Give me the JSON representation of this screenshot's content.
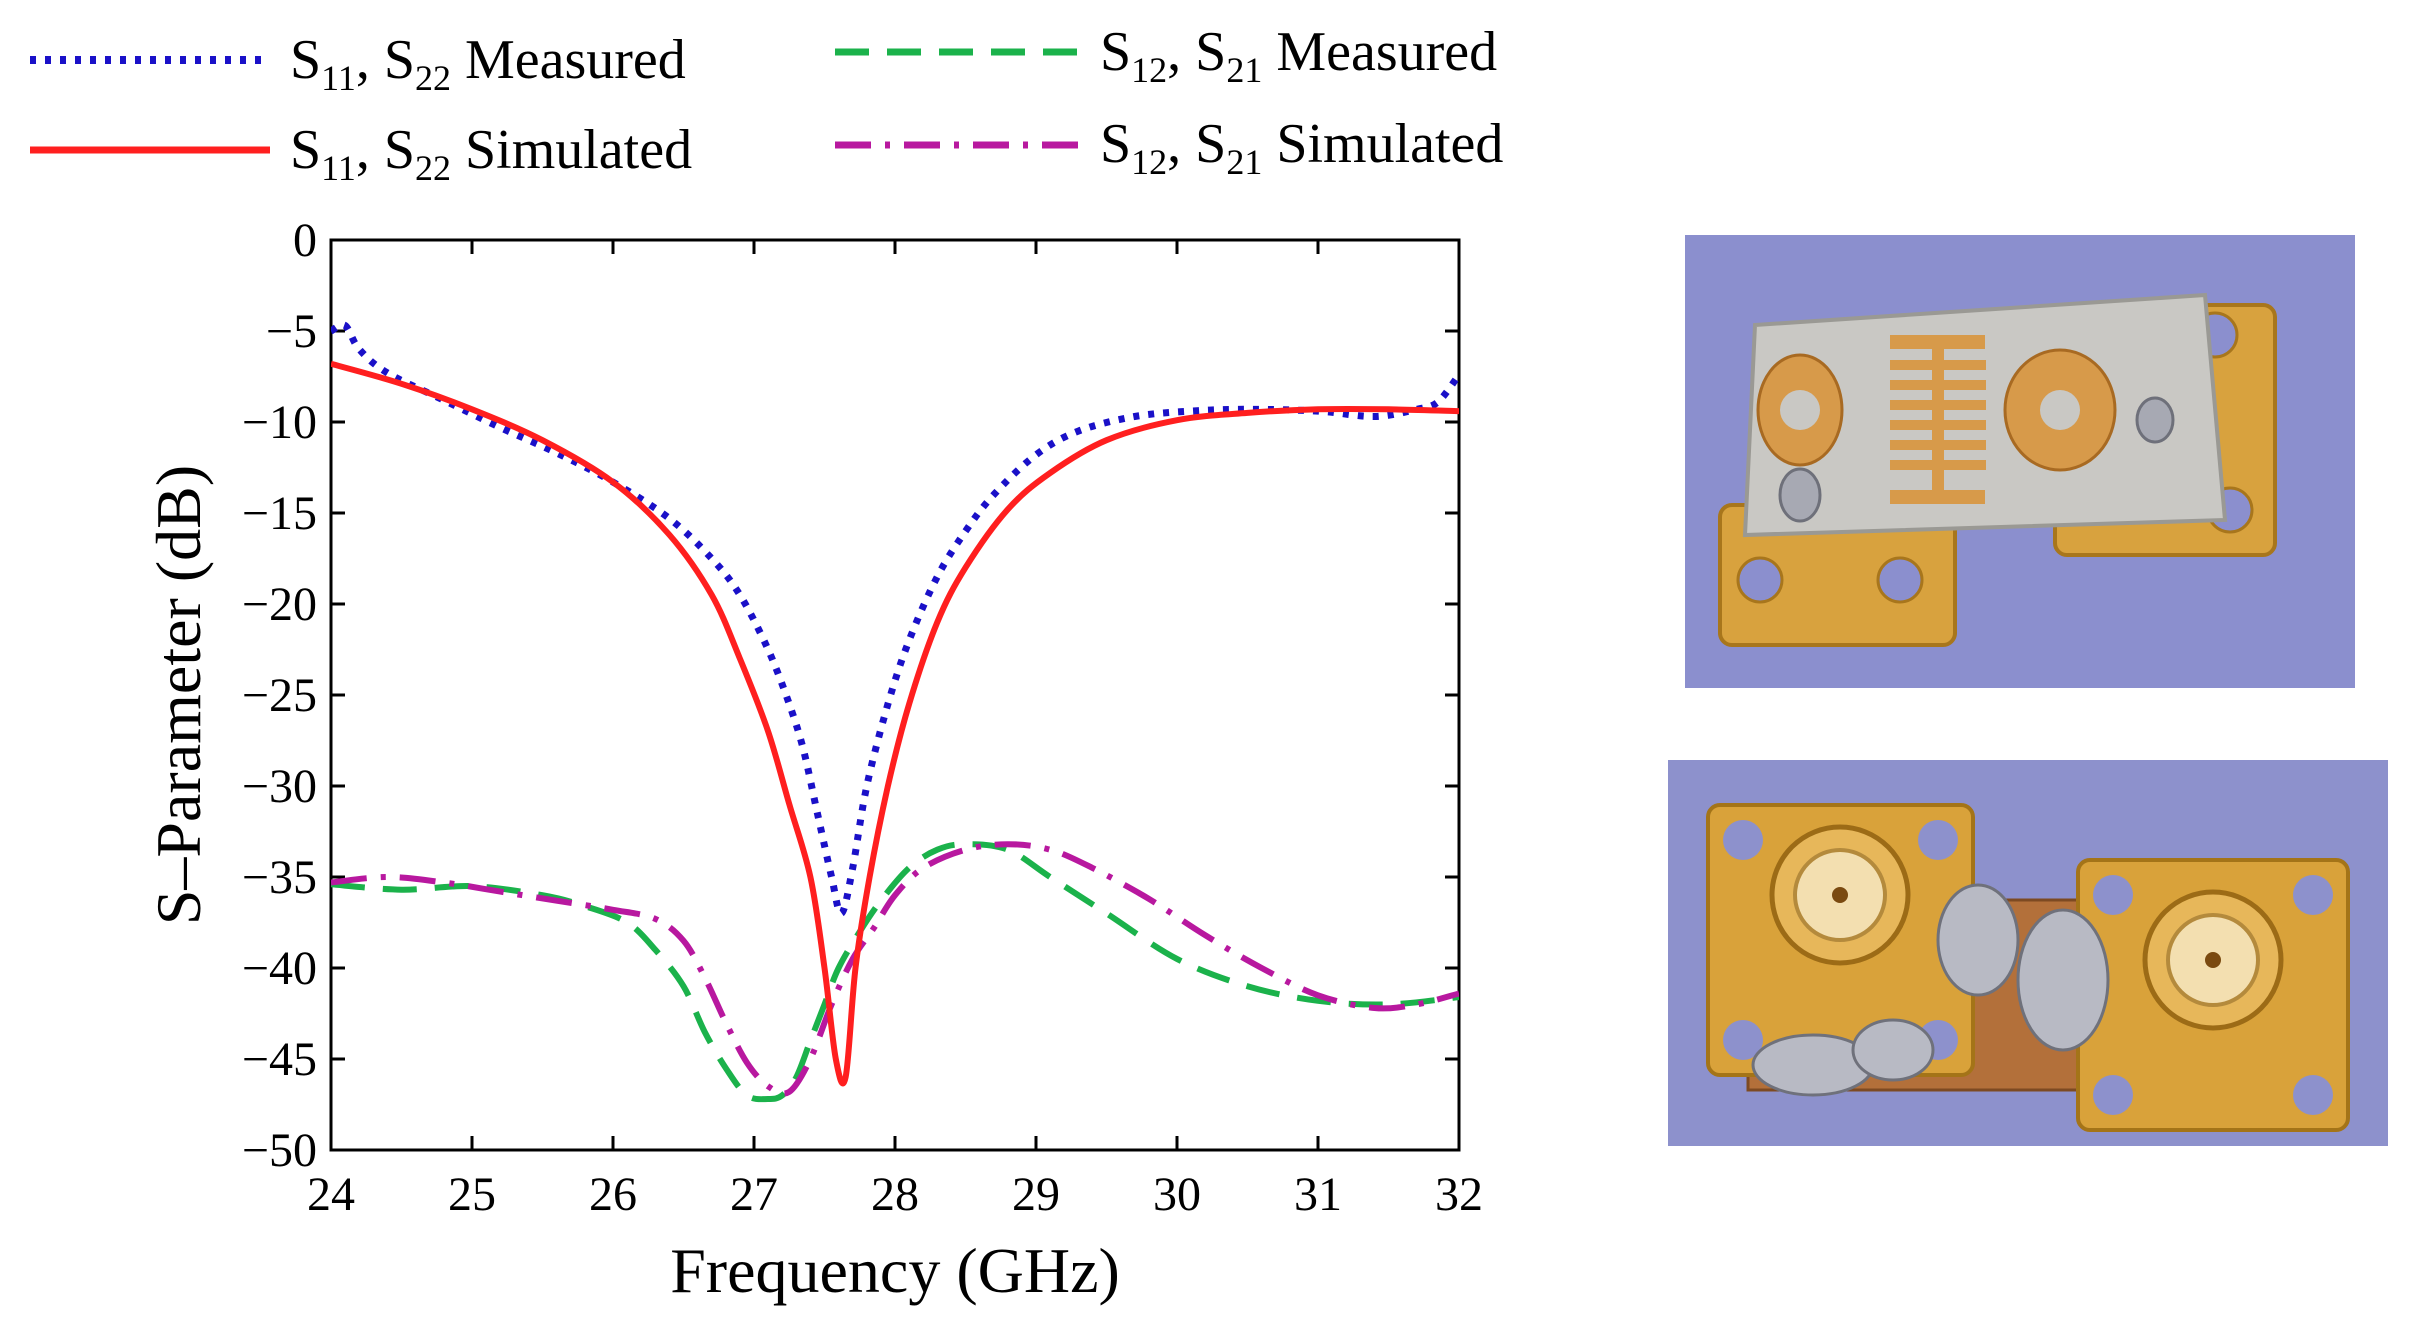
{
  "chart_data": {
    "type": "line",
    "xlabel": "Frequency (GHz)",
    "ylabel": "S–Parameter (dB)",
    "xlim": [
      24,
      32
    ],
    "ylim": [
      -50,
      0
    ],
    "xticks": [
      24,
      25,
      26,
      27,
      28,
      29,
      30,
      31,
      32
    ],
    "yticks": [
      0,
      -5,
      -10,
      -15,
      -20,
      -25,
      -30,
      -35,
      -40,
      -45,
      -50
    ],
    "ytick_labels": [
      "0",
      "−5",
      "−10",
      "−15",
      "−20",
      "−25",
      "−30",
      "−35",
      "−40",
      "−45",
      "−50"
    ],
    "grid": false,
    "legend_position": "top",
    "series": [
      {
        "key": "s11_measured",
        "label_main": "S",
        "label_sub1": "11",
        "label_mid": ", S",
        "label_sub2": "22",
        "label_tail": " Measured",
        "color": "#1a10c8",
        "dash": "dotted",
        "x": [
          24.0,
          24.1,
          24.2,
          24.4,
          24.8,
          25.2,
          25.6,
          26.0,
          26.4,
          26.7,
          26.9,
          27.1,
          27.25,
          27.35,
          27.45,
          27.55,
          27.62,
          27.7,
          27.8,
          27.95,
          28.1,
          28.3,
          28.5,
          28.7,
          29.0,
          29.3,
          29.7,
          30.1,
          30.5,
          31.0,
          31.4,
          31.7,
          31.85,
          32.0
        ],
        "y": [
          -5.0,
          -4.7,
          -6.0,
          -7.3,
          -8.8,
          -10.3,
          -11.7,
          -13.3,
          -15.3,
          -17.5,
          -19.5,
          -22.5,
          -25.5,
          -28.0,
          -31.5,
          -35.0,
          -37.0,
          -34.5,
          -30.0,
          -25.5,
          -22.0,
          -18.5,
          -16.0,
          -14.0,
          -11.8,
          -10.5,
          -9.7,
          -9.4,
          -9.3,
          -9.4,
          -9.7,
          -9.3,
          -8.9,
          -7.4
        ]
      },
      {
        "key": "s11_simulated",
        "label_main": "S",
        "label_sub1": "11",
        "label_mid": ", S",
        "label_sub2": "22",
        "label_tail": " Simulated",
        "color": "#ff1f1f",
        "dash": "solid",
        "x": [
          24.0,
          24.5,
          25.0,
          25.5,
          26.0,
          26.4,
          26.7,
          26.9,
          27.1,
          27.25,
          27.4,
          27.5,
          27.58,
          27.65,
          27.72,
          27.82,
          27.95,
          28.1,
          28.3,
          28.5,
          28.8,
          29.1,
          29.5,
          30.0,
          30.5,
          31.0,
          31.5,
          32.0
        ],
        "y": [
          -6.8,
          -7.9,
          -9.3,
          -11.0,
          -13.3,
          -16.2,
          -19.5,
          -23.0,
          -27.0,
          -31.0,
          -35.0,
          -40.0,
          -45.0,
          -46.0,
          -40.0,
          -35.0,
          -30.0,
          -25.5,
          -21.0,
          -18.0,
          -14.8,
          -12.8,
          -11.0,
          -9.9,
          -9.5,
          -9.3,
          -9.3,
          -9.4
        ]
      },
      {
        "key": "s21_measured",
        "label_main": "S",
        "label_sub1": "12",
        "label_mid": ", S",
        "label_sub2": "21",
        "label_tail": " Measured",
        "color": "#1bb24b",
        "dash": "dashed",
        "x": [
          24.0,
          24.5,
          25.0,
          25.5,
          25.8,
          26.1,
          26.3,
          26.5,
          26.65,
          26.8,
          26.95,
          27.1,
          27.2,
          27.3,
          27.4,
          27.5,
          27.6,
          27.75,
          27.9,
          28.1,
          28.3,
          28.5,
          28.8,
          29.1,
          29.5,
          30.0,
          30.5,
          31.0,
          31.5,
          32.0
        ],
        "y": [
          -35.4,
          -35.7,
          -35.5,
          -36.0,
          -36.6,
          -37.5,
          -39.0,
          -41.0,
          -43.5,
          -45.5,
          -47.0,
          -47.2,
          -47.0,
          -46.0,
          -44.0,
          -42.0,
          -40.0,
          -38.0,
          -36.3,
          -34.5,
          -33.5,
          -33.2,
          -33.5,
          -35.0,
          -37.0,
          -39.5,
          -41.0,
          -41.8,
          -42.0,
          -41.6
        ]
      },
      {
        "key": "s21_simulated",
        "label_main": "S",
        "label_sub1": "12",
        "label_mid": ", S",
        "label_sub2": "21",
        "label_tail": " Simulated",
        "color": "#b8189f",
        "dash": "dashdot",
        "x": [
          24.0,
          24.4,
          24.8,
          25.2,
          25.6,
          26.0,
          26.3,
          26.5,
          26.65,
          26.8,
          26.95,
          27.1,
          27.25,
          27.4,
          27.55,
          27.7,
          27.85,
          28.0,
          28.2,
          28.5,
          28.8,
          29.1,
          29.4,
          29.8,
          30.2,
          30.6,
          31.0,
          31.4,
          31.7,
          32.0
        ],
        "y": [
          -35.3,
          -35.0,
          -35.3,
          -35.8,
          -36.3,
          -36.8,
          -37.3,
          -38.5,
          -40.5,
          -43.0,
          -45.2,
          -46.5,
          -46.8,
          -45.0,
          -42.0,
          -39.5,
          -37.8,
          -36.0,
          -34.5,
          -33.5,
          -33.2,
          -33.5,
          -34.5,
          -36.2,
          -38.2,
          -40.0,
          -41.5,
          -42.2,
          -42.0,
          -41.4
        ]
      }
    ]
  }
}
